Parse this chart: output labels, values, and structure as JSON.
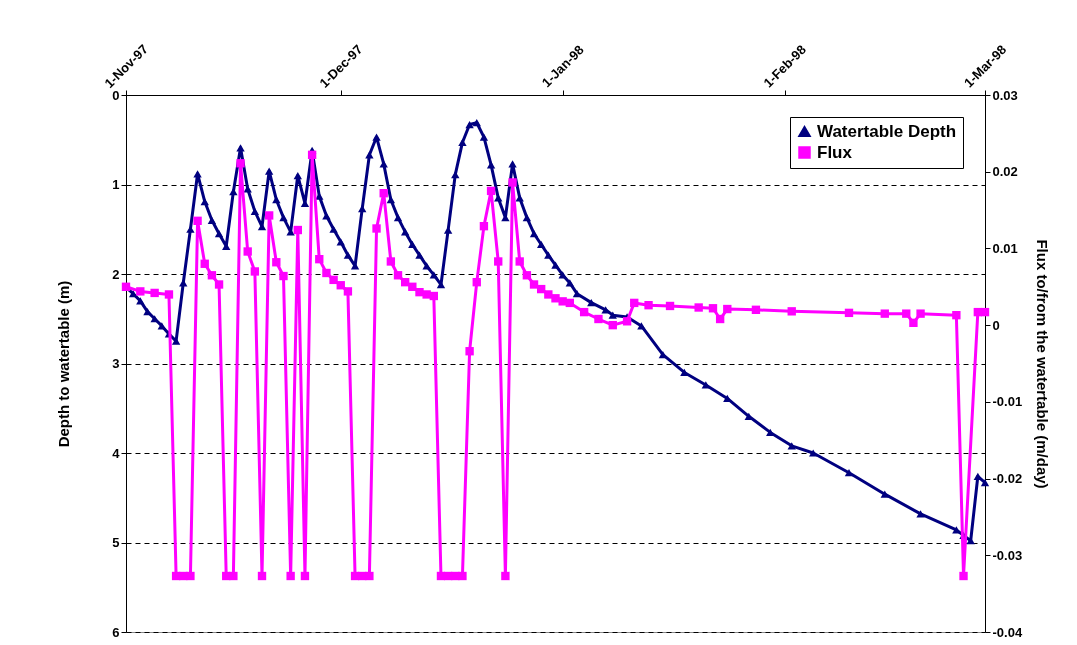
{
  "chart_data": {
    "type": "line",
    "ylabel": "Depth to watertable (m)",
    "y2label": "Flux to/from the watertable (m/day)",
    "xlim": [
      "1997-11-01",
      "1998-03-01"
    ],
    "xticks": [
      {
        "value": "1997-11-01",
        "label": "1-Nov-97"
      },
      {
        "value": "1997-12-01",
        "label": "1-Dec-97"
      },
      {
        "value": "1998-01-01",
        "label": "1-Jan-98"
      },
      {
        "value": "1998-02-01",
        "label": "1-Feb-98"
      },
      {
        "value": "1998-03-01",
        "label": "1-Mar-98"
      }
    ],
    "ylim": [
      6,
      0
    ],
    "yticks": [
      0,
      1,
      2,
      3,
      4,
      5,
      6
    ],
    "y2lim": [
      -0.04,
      0.03
    ],
    "y2ticks": [
      -0.04,
      -0.03,
      -0.02,
      -0.01,
      0,
      0.01,
      0.02,
      0.03
    ],
    "grid": "y",
    "legend": "top right",
    "series": [
      {
        "name": "Watertable Depth",
        "color": "#000080",
        "marker": "triangle",
        "x": [
          "1997-11-01",
          "1997-11-02",
          "1997-11-03",
          "1997-11-04",
          "1997-11-05",
          "1997-11-06",
          "1997-11-07",
          "1997-11-08",
          "1997-11-09",
          "1997-11-10",
          "1997-11-11",
          "1997-11-12",
          "1997-11-13",
          "1997-11-14",
          "1997-11-15",
          "1997-11-16",
          "1997-11-17",
          "1997-11-18",
          "1997-11-19",
          "1997-11-20",
          "1997-11-21",
          "1997-11-22",
          "1997-11-23",
          "1997-11-24",
          "1997-11-25",
          "1997-11-26",
          "1997-11-27",
          "1997-11-28",
          "1997-11-29",
          "1997-11-30",
          "1997-12-01",
          "1997-12-02",
          "1997-12-03",
          "1997-12-04",
          "1997-12-05",
          "1997-12-06",
          "1997-12-07",
          "1997-12-08",
          "1997-12-09",
          "1997-12-10",
          "1997-12-11",
          "1997-12-12",
          "1997-12-13",
          "1997-12-14",
          "1997-12-15",
          "1997-12-16",
          "1997-12-17",
          "1997-12-18",
          "1997-12-19",
          "1997-12-20",
          "1997-12-21",
          "1997-12-22",
          "1997-12-23",
          "1997-12-24",
          "1997-12-25",
          "1997-12-26",
          "1997-12-27",
          "1997-12-28",
          "1997-12-29",
          "1997-12-30",
          "1997-12-31",
          "1998-01-01",
          "1998-01-02",
          "1998-01-03",
          "1998-01-05",
          "1998-01-07",
          "1998-01-08",
          "1998-01-10",
          "1998-01-12",
          "1998-01-15",
          "1998-01-18",
          "1998-01-21",
          "1998-01-24",
          "1998-01-27",
          "1998-01-30",
          "1998-02-02",
          "1998-02-05",
          "1998-02-10",
          "1998-02-15",
          "1998-02-20",
          "1998-02-25",
          "1998-02-26",
          "1998-02-27",
          "1998-02-28",
          "1998-03-01"
        ],
        "values": [
          2.15,
          2.22,
          2.3,
          2.42,
          2.5,
          2.58,
          2.67,
          2.75,
          2.1,
          1.5,
          0.88,
          1.19,
          1.4,
          1.55,
          1.69,
          1.08,
          0.59,
          1.05,
          1.3,
          1.47,
          0.85,
          1.17,
          1.37,
          1.53,
          0.9,
          1.21,
          0.62,
          1.13,
          1.35,
          1.5,
          1.64,
          1.79,
          1.91,
          1.27,
          0.67,
          0.47,
          0.77,
          1.17,
          1.37,
          1.53,
          1.67,
          1.79,
          1.91,
          2.01,
          2.12,
          1.51,
          0.89,
          0.53,
          0.33,
          0.31,
          0.47,
          0.78,
          1.15,
          1.37,
          0.77,
          1.15,
          1.37,
          1.55,
          1.67,
          1.79,
          1.9,
          2.01,
          2.1,
          2.22,
          2.32,
          2.4,
          2.46,
          2.48,
          2.58,
          2.9,
          3.1,
          3.24,
          3.39,
          3.59,
          3.77,
          3.92,
          4.0,
          4.22,
          4.46,
          4.68,
          4.86,
          4.92,
          4.98,
          4.26,
          4.33
        ]
      },
      {
        "name": "Flux",
        "color": "#ff00ff",
        "marker": "square",
        "axis": "y2",
        "x": [
          "1997-11-01",
          "1997-11-03",
          "1997-11-05",
          "1997-11-07",
          "1997-11-08",
          "1997-11-09",
          "1997-11-10",
          "1997-11-11",
          "1997-11-12",
          "1997-11-13",
          "1997-11-14",
          "1997-11-15",
          "1997-11-16",
          "1997-11-17",
          "1997-11-18",
          "1997-11-19",
          "1997-11-20",
          "1997-11-21",
          "1997-11-22",
          "1997-11-23",
          "1997-11-24",
          "1997-11-25",
          "1997-11-26",
          "1997-11-27",
          "1997-11-28",
          "1997-11-29",
          "1997-11-30",
          "1997-12-01",
          "1997-12-02",
          "1997-12-03",
          "1997-12-04",
          "1997-12-05",
          "1997-12-06",
          "1997-12-07",
          "1997-12-08",
          "1997-12-09",
          "1997-12-10",
          "1997-12-11",
          "1997-12-12",
          "1997-12-13",
          "1997-12-14",
          "1997-12-15",
          "1997-12-16",
          "1997-12-17",
          "1997-12-18",
          "1997-12-19",
          "1997-12-20",
          "1997-12-21",
          "1997-12-22",
          "1997-12-23",
          "1997-12-24",
          "1997-12-25",
          "1997-12-26",
          "1997-12-27",
          "1997-12-28",
          "1997-12-29",
          "1997-12-30",
          "1997-12-31",
          "1998-01-01",
          "1998-01-02",
          "1998-01-04",
          "1998-01-06",
          "1998-01-08",
          "1998-01-10",
          "1998-01-11",
          "1998-01-13",
          "1998-01-16",
          "1998-01-20",
          "1998-01-22",
          "1998-01-23",
          "1998-01-24",
          "1998-01-28",
          "1998-02-02",
          "1998-02-10",
          "1998-02-15",
          "1998-02-18",
          "1998-02-19",
          "1998-02-20",
          "1998-02-25",
          "1998-02-26",
          "1998-02-28",
          "1998-03-01"
        ],
        "values": [
          0.005,
          0.0044,
          0.0042,
          0.004,
          -0.0327,
          -0.0327,
          -0.0327,
          0.0136,
          0.008,
          0.0065,
          0.0053,
          -0.0327,
          -0.0327,
          0.0211,
          0.0096,
          0.007,
          -0.0327,
          0.0143,
          0.0082,
          0.0064,
          -0.0327,
          0.0124,
          -0.0327,
          0.0222,
          0.0086,
          0.0068,
          0.0059,
          0.0052,
          0.0044,
          -0.0327,
          -0.0327,
          -0.0327,
          0.0126,
          0.0172,
          0.0083,
          0.0065,
          0.0056,
          0.005,
          0.0043,
          0.004,
          0.0038,
          -0.0327,
          -0.0327,
          -0.0327,
          -0.0327,
          -0.0034,
          0.0056,
          0.0129,
          0.0175,
          0.0083,
          -0.0327,
          0.0186,
          0.0083,
          0.0065,
          0.0053,
          0.0047,
          0.004,
          0.0035,
          0.0031,
          0.0029,
          0.0017,
          0.0008,
          0.0,
          0.0005,
          0.0029,
          0.0026,
          0.0025,
          0.0023,
          0.0022,
          0.0008,
          0.0021,
          0.002,
          0.0018,
          0.0016,
          0.0015,
          0.0015,
          0.0003,
          0.0015,
          0.0013,
          -0.0327,
          0.0017,
          0.0017
        ]
      }
    ]
  }
}
